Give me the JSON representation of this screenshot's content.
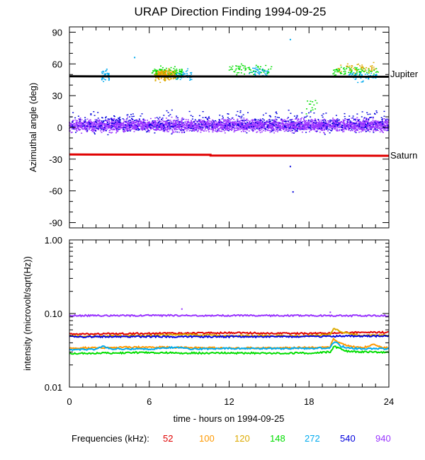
{
  "chart_data": [
    {
      "type": "scatter",
      "title": "URAP Direction Finding  1994-09-25",
      "ylabel": "Azimuthal angle (deg)",
      "xlim": [
        0,
        24
      ],
      "ylim": [
        -95,
        95
      ],
      "yticks": [
        -90,
        -60,
        -30,
        0,
        30,
        60,
        90
      ],
      "ytick_labels": [
        "-90",
        "-60",
        "-30",
        "0",
        "30",
        "60",
        "90"
      ],
      "reference_lines": [
        {
          "name": "Jupiter",
          "color": "#000000",
          "points": [
            [
              0,
              48.3
            ],
            [
              24,
              47.9
            ]
          ]
        },
        {
          "name": "Saturn",
          "color": "#e00000",
          "points": [
            [
              0,
              -25.6
            ],
            [
              10.6,
              -25.9
            ],
            [
              10.6,
              -26.6
            ],
            [
              24,
              -26.8
            ]
          ]
        }
      ],
      "clusters": [
        {
          "frequency": "940",
          "color": "#9933ff",
          "x_range": [
            0,
            24
          ],
          "center": 2,
          "spread": 5,
          "count": 3600
        },
        {
          "frequency": "540",
          "color": "#0000dd",
          "x_range": [
            0,
            24
          ],
          "center": 3,
          "spread": 7,
          "count": 450
        },
        {
          "frequency": "540",
          "color": "#0000dd",
          "x_range": [
            0,
            24
          ],
          "center": 11,
          "spread": 5,
          "count": 110
        },
        {
          "frequency": "148",
          "color": "#00dd00",
          "x_range": [
            6.2,
            8.6
          ],
          "center": 52,
          "spread": 4,
          "count": 140
        },
        {
          "frequency": "120",
          "color": "#ddaa00",
          "x_range": [
            6.4,
            8.0
          ],
          "center": 49,
          "spread": 5,
          "count": 110
        },
        {
          "frequency": "100",
          "color": "#ff9900",
          "x_range": [
            6.6,
            7.6
          ],
          "center": 50,
          "spread": 4,
          "count": 50
        },
        {
          "frequency": "272",
          "color": "#00aaee",
          "x_range": [
            2.4,
            3.0
          ],
          "center": 49,
          "spread": 5,
          "count": 40
        },
        {
          "frequency": "272",
          "color": "#00aaee",
          "x_range": [
            8.0,
            9.2
          ],
          "center": 50,
          "spread": 4,
          "count": 45
        },
        {
          "frequency": "272",
          "color": "#00aaee",
          "x_range": [
            13.5,
            15.0
          ],
          "center": 53,
          "spread": 4,
          "count": 45
        },
        {
          "frequency": "148",
          "color": "#00dd00",
          "x_range": [
            12.0,
            15.2
          ],
          "center": 55,
          "spread": 4,
          "count": 60
        },
        {
          "frequency": "148",
          "color": "#00dd00",
          "x_range": [
            19.8,
            23.2
          ],
          "center": 53,
          "spread": 4,
          "count": 90
        },
        {
          "frequency": "120",
          "color": "#ddaa00",
          "x_range": [
            20.2,
            23.0
          ],
          "center": 56,
          "spread": 4,
          "count": 50
        },
        {
          "frequency": "272",
          "color": "#00aaee",
          "x_range": [
            21.0,
            23.2
          ],
          "center": 48,
          "spread": 5,
          "count": 60
        },
        {
          "frequency": "148",
          "color": "#00dd00",
          "x_range": [
            17.8,
            18.6
          ],
          "center": 20,
          "spread": 7,
          "count": 14
        }
      ],
      "outliers": [
        {
          "x": 16.6,
          "y": 83,
          "color": "#00aaee"
        },
        {
          "x": 16.6,
          "y": -37,
          "color": "#0000dd"
        },
        {
          "x": 16.8,
          "y": -61,
          "color": "#0000dd"
        },
        {
          "x": 4.9,
          "y": 66,
          "color": "#00aaee"
        }
      ],
      "labels": {
        "jupiter": "Jupiter",
        "saturn": "Saturn"
      }
    },
    {
      "type": "line",
      "ylabel": "intensity (microvolt/sqrt(Hz))",
      "xlabel": "time - hours on 1994-09-25",
      "yscale": "log",
      "ylim": [
        0.01,
        1.0
      ],
      "yticks": [
        0.01,
        0.1,
        1.0
      ],
      "ytick_labels": [
        "0.01",
        "0.10",
        "1.00"
      ],
      "xticks": [
        0,
        6,
        12,
        18,
        24
      ],
      "xtick_labels": [
        "0",
        "6",
        "12",
        "18",
        "24"
      ],
      "series": [
        {
          "name": "52",
          "color": "#e00000",
          "x": [
            0,
            6,
            12,
            18,
            19.6,
            20,
            24
          ],
          "values": [
            0.0525,
            0.0535,
            0.0545,
            0.0535,
            0.054,
            0.055,
            0.0555
          ]
        },
        {
          "name": "100",
          "color": "#ff9900",
          "x": [
            0,
            3,
            6,
            9,
            12,
            15,
            18,
            19.6,
            19.8,
            20.2,
            21,
            22,
            23,
            23.4,
            24
          ],
          "values": [
            0.034,
            0.0345,
            0.035,
            0.0345,
            0.034,
            0.034,
            0.0345,
            0.035,
            0.045,
            0.04,
            0.036,
            0.034,
            0.038,
            0.035,
            0.034
          ]
        },
        {
          "name": "120",
          "color": "#ddaa00",
          "x": [
            0,
            6,
            8,
            12,
            18,
            19.6,
            19.9,
            20.3,
            21,
            22,
            23,
            24
          ],
          "values": [
            0.049,
            0.05,
            0.052,
            0.05,
            0.05,
            0.052,
            0.063,
            0.058,
            0.053,
            0.05,
            0.051,
            0.05
          ]
        },
        {
          "name": "148",
          "color": "#00dd00",
          "x": [
            0,
            3,
            6,
            9,
            12,
            15,
            18,
            19.6,
            19.9,
            20.5,
            21,
            22,
            23,
            24
          ],
          "values": [
            0.0285,
            0.029,
            0.0295,
            0.029,
            0.029,
            0.029,
            0.029,
            0.03,
            0.036,
            0.032,
            0.0305,
            0.03,
            0.03,
            0.0295
          ]
        },
        {
          "name": "272",
          "color": "#00aaee",
          "x": [
            0,
            2,
            2.6,
            3,
            6,
            8.4,
            9,
            12,
            15,
            18,
            19.6,
            19.9,
            20.4,
            21,
            22,
            23,
            24
          ],
          "values": [
            0.0325,
            0.0325,
            0.036,
            0.033,
            0.033,
            0.035,
            0.033,
            0.0335,
            0.0335,
            0.0335,
            0.034,
            0.042,
            0.036,
            0.034,
            0.033,
            0.0335,
            0.033
          ]
        },
        {
          "name": "540",
          "color": "#0000dd",
          "x": [
            0,
            6,
            12,
            18,
            19.7,
            20,
            24
          ],
          "values": [
            0.0483,
            0.0485,
            0.0485,
            0.0485,
            0.049,
            0.0492,
            0.0495
          ]
        },
        {
          "name": "940",
          "color": "#9933ff",
          "x": [
            0,
            6,
            12,
            18,
            24
          ],
          "values": [
            0.0935,
            0.094,
            0.0938,
            0.0935,
            0.0935
          ]
        }
      ]
    }
  ],
  "legend": {
    "label": "Frequencies (kHz):",
    "items": [
      {
        "text": "52",
        "color": "#e00000"
      },
      {
        "text": "100",
        "color": "#ff9900"
      },
      {
        "text": "120",
        "color": "#ddaa00"
      },
      {
        "text": "148",
        "color": "#00dd00"
      },
      {
        "text": "272",
        "color": "#00aaee"
      },
      {
        "text": "540",
        "color": "#0000dd"
      },
      {
        "text": "940",
        "color": "#9933ff"
      }
    ]
  }
}
